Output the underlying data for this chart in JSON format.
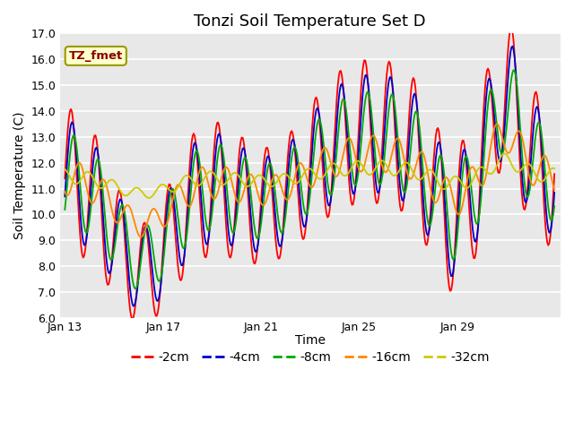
{
  "title": "Tonzi Soil Temperature Set D",
  "xlabel": "Time",
  "ylabel": "Soil Temperature (C)",
  "ylim": [
    6.0,
    17.0
  ],
  "yticks": [
    6.0,
    7.0,
    8.0,
    9.0,
    10.0,
    11.0,
    12.0,
    13.0,
    14.0,
    15.0,
    16.0,
    17.0
  ],
  "xtick_labels": [
    "Jan 13",
    "Jan 17",
    "Jan 21",
    "Jan 25",
    "Jan 29"
  ],
  "xtick_positions": [
    0,
    96,
    192,
    288,
    384
  ],
  "n_points": 480,
  "annotation_label": "TZ_fmet",
  "annotation_text_color": "#880000",
  "annotation_bg": "#ffffcc",
  "annotation_border": "#999900",
  "plot_bg_color": "#e8e8e8",
  "line_colors": [
    "#ff0000",
    "#0000cc",
    "#00aa00",
    "#ff8800",
    "#cccc00"
  ],
  "line_labels": [
    "-2cm",
    "-4cm",
    "-8cm",
    "-16cm",
    "-32cm"
  ],
  "title_fontsize": 13,
  "label_fontsize": 10,
  "tick_fontsize": 9,
  "legend_fontsize": 10
}
